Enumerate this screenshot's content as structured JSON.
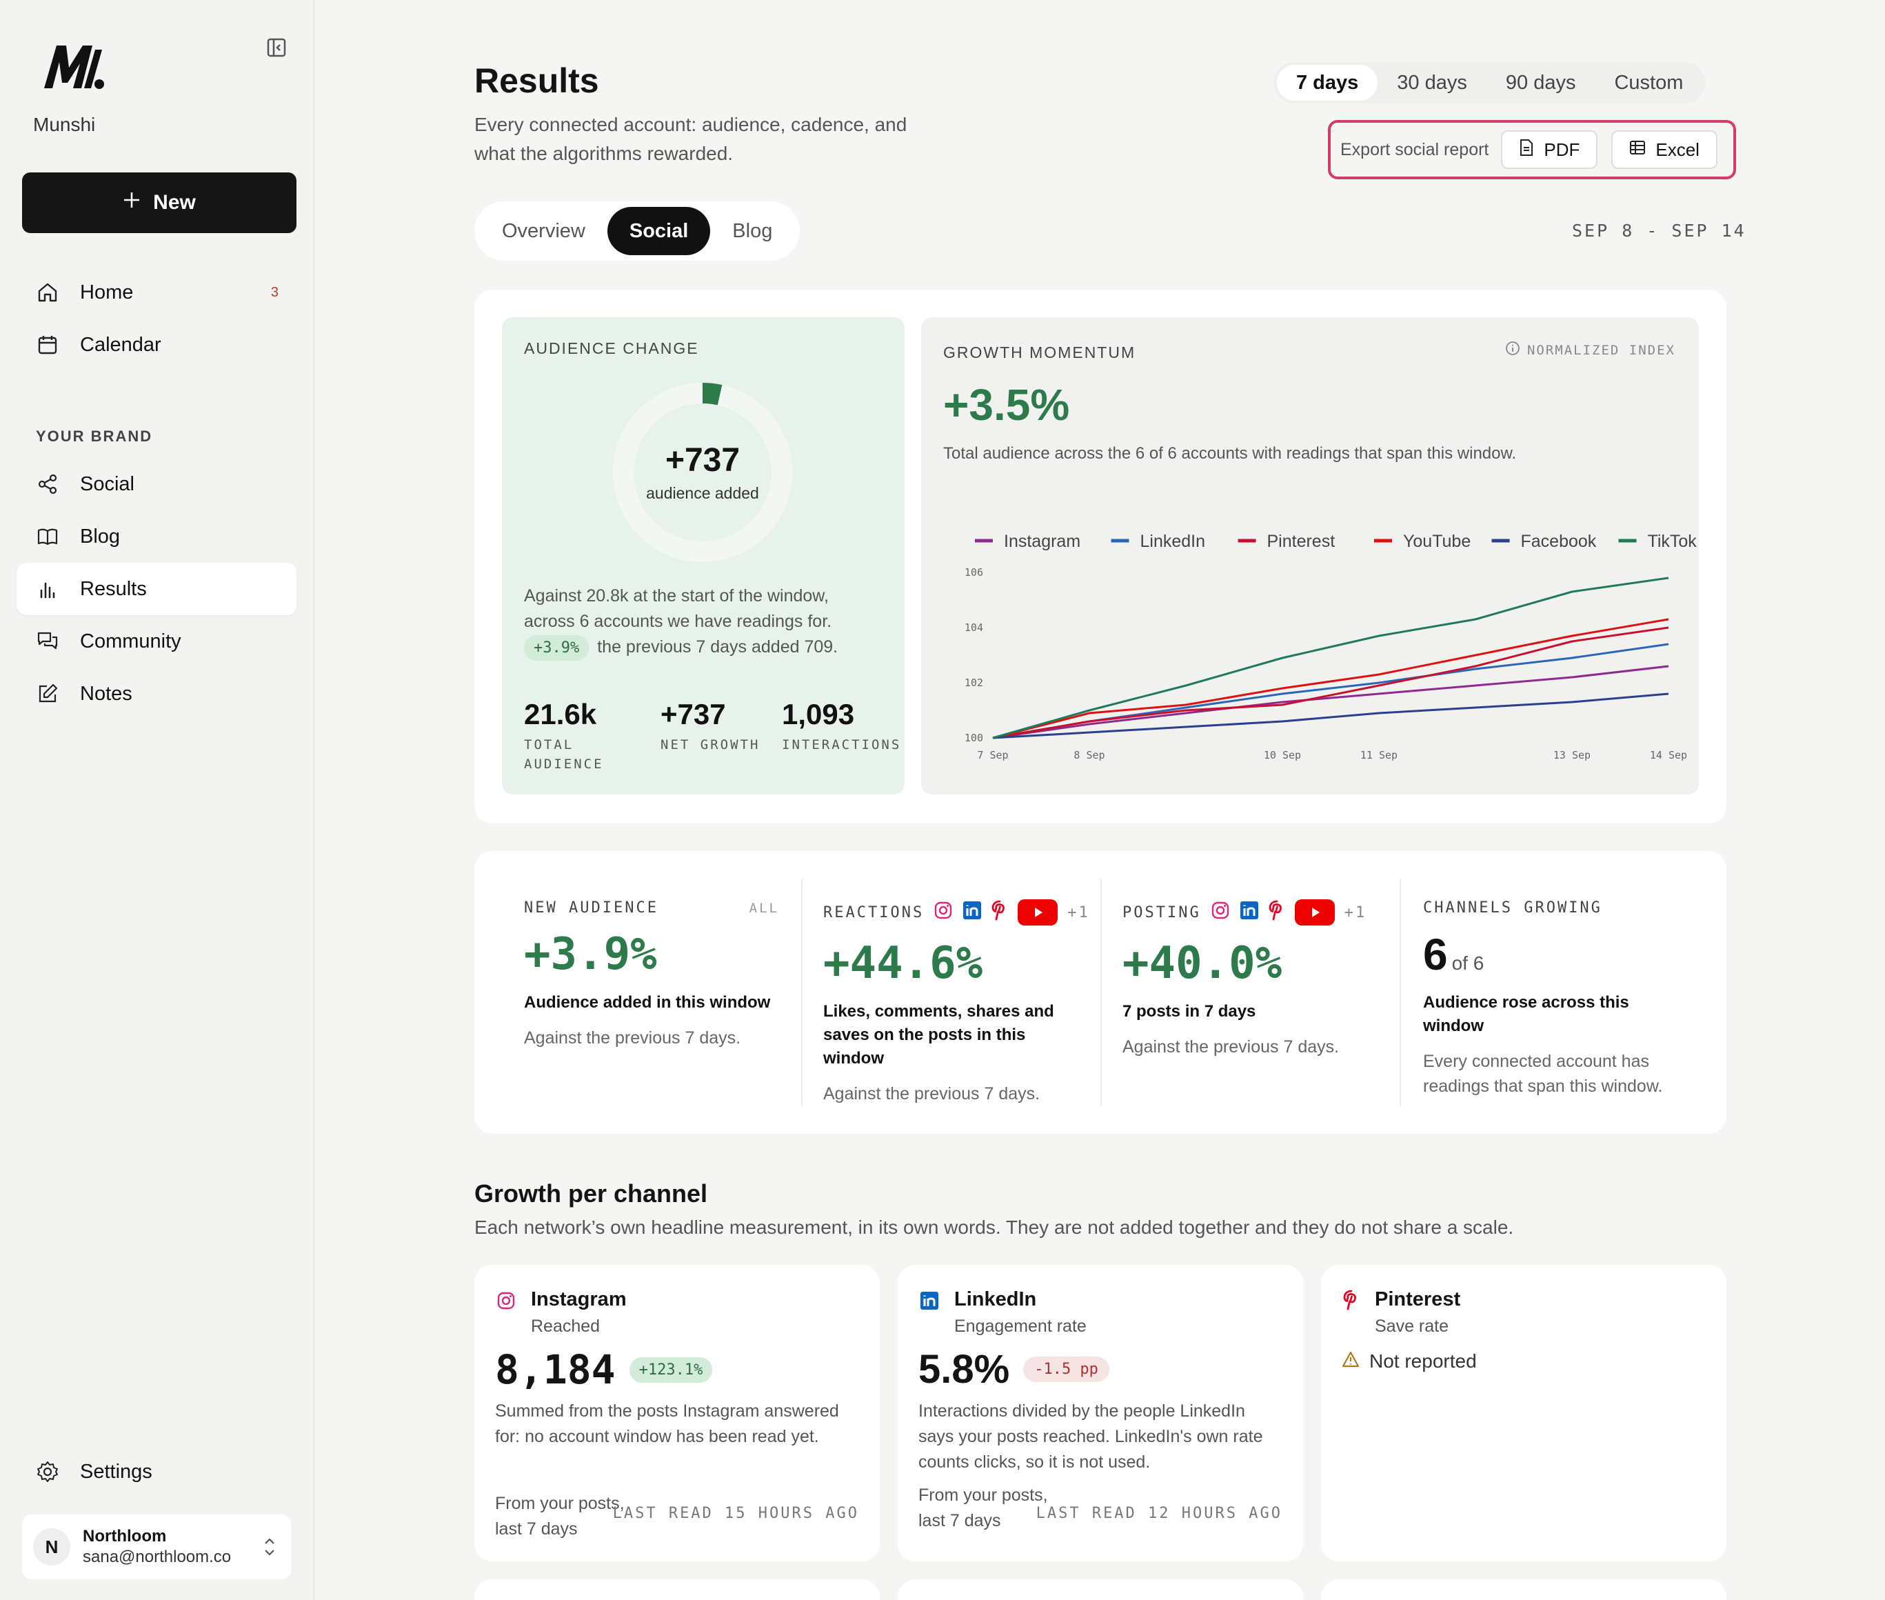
{
  "sidebar": {
    "brand": "Munshi",
    "new_label": "New",
    "nav": [
      {
        "label": "Home",
        "badge": "3"
      },
      {
        "label": "Calendar"
      }
    ],
    "section_label": "YOUR BRAND",
    "brand_nav": [
      {
        "label": "Social"
      },
      {
        "label": "Blog"
      },
      {
        "label": "Results"
      },
      {
        "label": "Community"
      },
      {
        "label": "Notes"
      }
    ],
    "settings_label": "Settings",
    "user": {
      "initial": "N",
      "name": "Northloom",
      "email": "sana@northloom.co"
    }
  },
  "header": {
    "title": "Results",
    "subtitle": "Every connected account: audience, cadence, and what the algorithms rewarded.",
    "ranges": [
      "7 days",
      "30 days",
      "90 days",
      "Custom"
    ],
    "active_range": "7 days",
    "export_label": "Export social report",
    "export_pdf": "PDF",
    "export_excel": "Excel"
  },
  "view_tabs": [
    "Overview",
    "Social",
    "Blog"
  ],
  "date_range": "SEP 8 - SEP 14",
  "audience": {
    "label": "AUDIENCE CHANGE",
    "donut_value": "+737",
    "donut_label": "audience added",
    "donut_fraction": 0.035,
    "desc_1": "Against 20.8k at the start of the window, across 6 accounts we have readings for.",
    "pill": "+3.9%",
    "desc_2": "the previous 7 days added 709.",
    "stats": [
      {
        "value": "21.6k",
        "label": "TOTAL AUDIENCE"
      },
      {
        "value": "+737",
        "label": "NET GROWTH"
      },
      {
        "value": "1,093",
        "label": "INTERACTIONS"
      }
    ]
  },
  "growth": {
    "label": "GROWTH MOMENTUM",
    "index_label": "NORMALIZED INDEX",
    "value": "+3.5%",
    "desc": "Total audience across the 6 of 6 accounts with readings that span this window."
  },
  "chart_data": {
    "type": "line",
    "x": [
      "7 Sep",
      "8 Sep",
      "9 Sep",
      "10 Sep",
      "11 Sep",
      "12 Sep",
      "13 Sep",
      "14 Sep"
    ],
    "x_tick_labels": [
      "7 Sep",
      "8 Sep",
      "10 Sep",
      "11 Sep",
      "13 Sep",
      "14 Sep"
    ],
    "y_ticks": [
      "100",
      "102",
      "104",
      "106"
    ],
    "ylim": [
      100,
      106
    ],
    "grid": false,
    "legend_position": "top",
    "series": [
      {
        "name": "Instagram",
        "color": "#8e2a8e",
        "values": [
          100,
          100.5,
          100.9,
          101.3,
          101.6,
          101.9,
          102.2,
          102.6
        ]
      },
      {
        "name": "LinkedIn",
        "color": "#2a66b8",
        "values": [
          100,
          100.6,
          101.1,
          101.6,
          102.0,
          102.5,
          102.9,
          103.4
        ]
      },
      {
        "name": "Pinterest",
        "color": "#c8102e",
        "values": [
          100,
          100.6,
          101.0,
          101.2,
          101.9,
          102.6,
          103.5,
          104.0
        ]
      },
      {
        "name": "YouTube",
        "color": "#e01010",
        "values": [
          100,
          100.9,
          101.2,
          101.8,
          102.3,
          103.0,
          103.7,
          104.3
        ]
      },
      {
        "name": "Facebook",
        "color": "#2c3e8c",
        "values": [
          100,
          100.2,
          100.4,
          100.6,
          100.9,
          101.1,
          101.3,
          101.6
        ]
      },
      {
        "name": "TikTok",
        "color": "#1e7a5a",
        "values": [
          100,
          101.0,
          101.9,
          102.9,
          103.7,
          104.3,
          105.3,
          105.8
        ]
      }
    ]
  },
  "kpis": [
    {
      "label": "NEW AUDIENCE",
      "tag": "ALL",
      "value": "+3.9%",
      "title": "Audience added in this window",
      "note": "Against the previous 7 days."
    },
    {
      "label": "REACTIONS",
      "more": "+1",
      "value": "+44.6%",
      "title": "Likes, comments, shares and saves on the posts in this window",
      "note": "Against the previous 7 days."
    },
    {
      "label": "POSTING",
      "more": "+1",
      "value": "+40.0%",
      "title": "7 posts in 7 days",
      "note": "Against the previous 7 days."
    },
    {
      "label": "CHANNELS GROWING",
      "value": "6",
      "value_suffix": "of 6",
      "title": "Audience rose across this window",
      "note": "Every connected account has readings that span this window."
    }
  ],
  "channels_section": {
    "title": "Growth per channel",
    "subtitle": "Each network’s own headline measurement, in its own words. They are not added together and they do not share a scale."
  },
  "channels": [
    {
      "name": "Instagram",
      "metric": "Reached",
      "value": "8,184",
      "delta": "+123.1%",
      "desc": "Summed from the posts Instagram answered for: no account window has been read yet.",
      "foot": "From your posts, last 7 days",
      "read": "LAST READ 15 HOURS AGO"
    },
    {
      "name": "LinkedIn",
      "metric": "Engagement rate",
      "value": "5.8%",
      "delta": "-1.5 pp",
      "desc": "Interactions divided by the people LinkedIn says your posts reached. LinkedIn's own rate counts clicks, so it is not used.",
      "foot": "From your posts, last 7 days",
      "read": "LAST READ 12 HOURS AGO"
    },
    {
      "name": "Pinterest",
      "metric": "Save rate",
      "status": "Not reported"
    }
  ]
}
